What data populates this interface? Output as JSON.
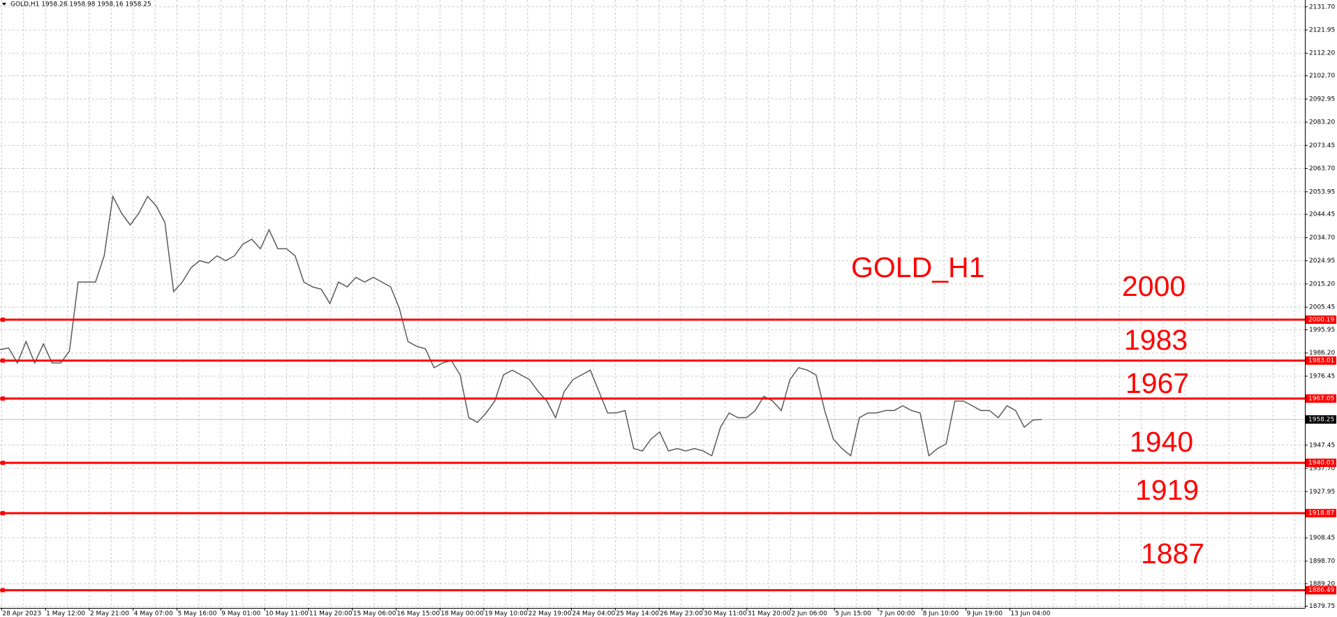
{
  "chart_data": {
    "type": "line",
    "title": "GOLD,H1  1958.28 1958.98 1958.16 1958.25",
    "color": "#5a5a5a",
    "ylim": [
      1879.03,
      2134.57
    ],
    "yticks": [
      {
        "value": 2131.7,
        "label": "2131.70"
      },
      {
        "value": 2121.95,
        "label": "2121.95"
      },
      {
        "value": 2112.2,
        "label": "2112.20"
      },
      {
        "value": 2102.7,
        "label": "2102.70"
      },
      {
        "value": 2092.95,
        "label": "2092.95"
      },
      {
        "value": 2083.2,
        "label": "2083.20"
      },
      {
        "value": 2073.45,
        "label": "2073.45"
      },
      {
        "value": 2063.7,
        "label": "2063.70"
      },
      {
        "value": 2053.95,
        "label": "2053.95"
      },
      {
        "value": 2044.45,
        "label": "2044.45"
      },
      {
        "value": 2034.7,
        "label": "2034.70"
      },
      {
        "value": 2024.95,
        "label": "2024.95"
      },
      {
        "value": 2015.2,
        "label": "2015.20"
      },
      {
        "value": 2005.45,
        "label": "2005.45"
      },
      {
        "value": 1995.95,
        "label": "1995.95"
      },
      {
        "value": 1986.2,
        "label": "1986.20"
      },
      {
        "value": 1976.45,
        "label": "1976.45"
      },
      {
        "value": 1947.45,
        "label": "1947.45"
      },
      {
        "value": 1937.7,
        "label": "1937.70"
      },
      {
        "value": 1927.95,
        "label": "1927.95"
      },
      {
        "value": 1908.45,
        "label": "1908.45"
      },
      {
        "value": 1898.7,
        "label": "1898.70"
      },
      {
        "value": 1889.2,
        "label": "1889.20"
      },
      {
        "value": 1879.75,
        "label": "1879.75"
      }
    ],
    "grid": true,
    "xtick_labels": [
      "28 Apr 2023",
      "1 May 12:00",
      "2 May 21:00",
      "4 May 07:00",
      "5 May 16:00",
      "9 May 01:00",
      "10 May 11:00",
      "11 May 20:00",
      "15 May 06:00",
      "16 May 15:00",
      "18 May 00:00",
      "19 May 10:00",
      "22 May 19:00",
      "24 May 04:00",
      "25 May 14:00",
      "26 May 23:00",
      "30 May 11:00",
      "31 May 20:00",
      "2 Jun 06:00",
      "5 Jun 15:00",
      "7 Jun 00:00",
      "8 Jun 10:00",
      "9 Jun 19:00",
      "13 Jun 04:00"
    ],
    "values": [
      1987.6,
      1988.3,
      1982,
      1991,
      1982,
      1990,
      1982,
      1982,
      1987,
      2016,
      2016,
      2016,
      2027,
      2052,
      2045,
      2040,
      2045,
      2052,
      2048,
      2041,
      2012,
      2016,
      2022,
      2025,
      2024,
      2027,
      2025,
      2027,
      2032,
      2034,
      2030,
      2038,
      2030,
      2030,
      2027,
      2016,
      2014,
      2013,
      2007,
      2016,
      2014,
      2018,
      2016,
      2018,
      2016,
      2014,
      2005,
      1991,
      1989,
      1988,
      1980,
      1982,
      1983,
      1977,
      1959,
      1957,
      1961,
      1966,
      1977,
      1979,
      1977,
      1975,
      1970,
      1966,
      1959,
      1970,
      1975,
      1977,
      1979,
      1970,
      1961,
      1961,
      1962,
      1946,
      1945,
      1950,
      1953,
      1945,
      1946,
      1945,
      1946,
      1945,
      1943,
      1955,
      1961,
      1959,
      1959,
      1962,
      1968,
      1966,
      1962,
      1975,
      1980,
      1979,
      1977,
      1962,
      1950,
      1946,
      1943,
      1959,
      1961,
      1961,
      1962,
      1962,
      1964,
      1962,
      1961,
      1943,
      1946,
      1948,
      1966,
      1966,
      1964,
      1962,
      1962,
      1959,
      1964,
      1962,
      1955,
      1958,
      1958.25
    ],
    "levels": {
      "color": "#ff0000",
      "lines": [
        {
          "value": 2000.19,
          "label": "2000.19"
        },
        {
          "value": 1983.01,
          "label": "1983.01"
        },
        {
          "value": 1967.05,
          "label": "1967.05"
        },
        {
          "value": 1940.03,
          "label": "1940.03"
        },
        {
          "value": 1918.87,
          "label": "1918.87"
        },
        {
          "value": 1886.49,
          "label": "1886.49"
        }
      ]
    },
    "current_price": {
      "value": 1958.25,
      "label": "1958.25"
    },
    "annotations": [
      "GOLD_H1",
      "2000",
      "1983",
      "1967",
      "1940",
      "1919",
      "1887"
    ]
  }
}
